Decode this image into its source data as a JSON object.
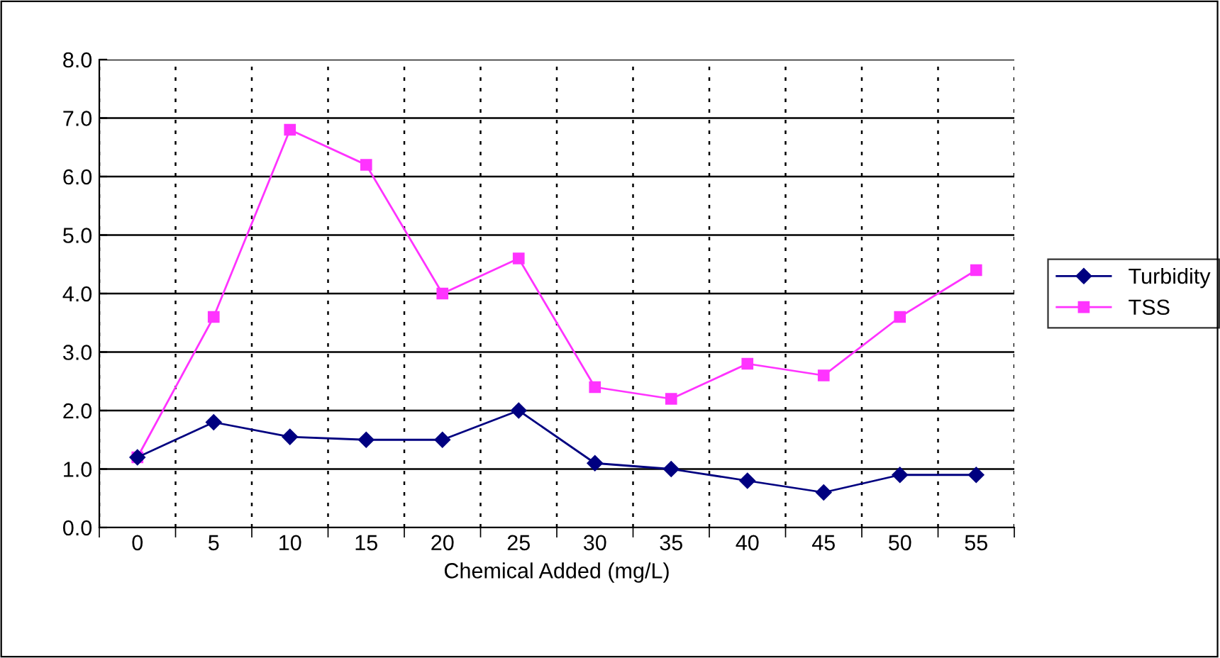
{
  "chart_data": {
    "type": "line",
    "xlabel": "Chemical Added (mg/L)",
    "categories": [
      "0",
      "5",
      "10",
      "15",
      "20",
      "25",
      "30",
      "35",
      "40",
      "45",
      "50",
      "55"
    ],
    "series": [
      {
        "name": "Turbidity",
        "color": "#000080",
        "marker": "diamond",
        "values": [
          1.2,
          1.8,
          1.55,
          1.5,
          1.5,
          2.0,
          1.1,
          1.0,
          0.8,
          0.6,
          0.9,
          0.9
        ]
      },
      {
        "name": "TSS",
        "color": "#ff33ff",
        "marker": "square",
        "values": [
          1.2,
          3.6,
          6.8,
          6.2,
          4.0,
          4.6,
          2.4,
          2.2,
          2.8,
          2.6,
          3.6,
          4.4
        ]
      }
    ],
    "ylim": [
      0,
      8
    ],
    "yticks": [
      {
        "value": 0,
        "label": "0.0"
      },
      {
        "value": 1,
        "label": "1.0"
      },
      {
        "value": 2,
        "label": "2.0"
      },
      {
        "value": 3,
        "label": "3.0"
      },
      {
        "value": 4,
        "label": "4.0"
      },
      {
        "value": 5,
        "label": "5.0"
      },
      {
        "value": 6,
        "label": "6.0"
      },
      {
        "value": 7,
        "label": "7.0"
      },
      {
        "value": 8,
        "label": "8.0"
      }
    ],
    "grid": true,
    "legend": "right"
  }
}
